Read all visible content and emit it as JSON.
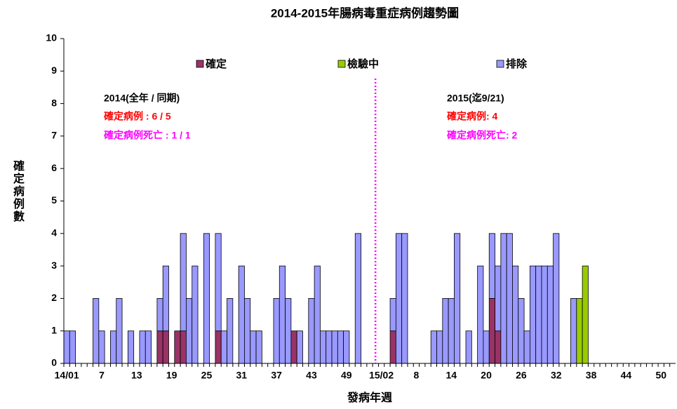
{
  "chart_data": {
    "type": "stacked-bar",
    "title": "2014-2015年腸病毒重症病例趨勢圖",
    "x_label": "發病年週",
    "y_label": "確定病例數",
    "categories": [
      "14/01",
      null,
      null,
      null,
      null,
      null,
      "7",
      null,
      null,
      null,
      null,
      null,
      "13",
      null,
      null,
      null,
      null,
      null,
      "19",
      null,
      null,
      null,
      null,
      null,
      "25",
      null,
      null,
      null,
      null,
      null,
      "31",
      null,
      null,
      null,
      null,
      null,
      "37",
      null,
      null,
      null,
      null,
      null,
      "43",
      null,
      null,
      null,
      null,
      null,
      "49",
      null,
      null,
      null,
      null,
      null,
      "15/02",
      null,
      null,
      null,
      null,
      null,
      "8",
      null,
      null,
      null,
      null,
      null,
      "14",
      null,
      null,
      null,
      null,
      null,
      "20",
      null,
      null,
      null,
      null,
      null,
      "26",
      null,
      null,
      null,
      null,
      null,
      "32",
      null,
      null,
      null,
      null,
      null,
      "38",
      null,
      null,
      null,
      null,
      null,
      "44",
      null,
      null,
      null,
      null,
      null,
      "50",
      null,
      null
    ],
    "series": [
      {
        "name": "確定",
        "color": "#993366",
        "values": [
          0,
          0,
          0,
          0,
          0,
          0,
          0,
          0,
          0,
          0,
          0,
          0,
          0,
          0,
          0,
          0,
          1,
          1,
          0,
          1,
          1,
          0,
          0,
          0,
          0,
          0,
          1,
          0,
          0,
          0,
          0,
          0,
          0,
          0,
          0,
          0,
          0,
          0,
          0,
          1,
          0,
          0,
          0,
          0,
          0,
          0,
          0,
          0,
          0,
          0,
          0,
          0,
          0,
          0,
          0,
          0,
          1,
          0,
          0,
          0,
          0,
          0,
          0,
          0,
          0,
          0,
          0,
          0,
          0,
          0,
          0,
          0,
          0,
          2,
          1,
          0,
          0,
          0,
          0,
          0,
          0,
          0,
          0,
          0,
          0,
          0,
          0,
          0,
          0,
          0,
          0,
          0,
          0,
          0,
          0,
          0,
          0,
          0,
          0,
          0,
          0,
          0,
          0,
          0,
          0
        ]
      },
      {
        "name": "檢驗中",
        "color": "#99cc00",
        "values": [
          0,
          0,
          0,
          0,
          0,
          0,
          0,
          0,
          0,
          0,
          0,
          0,
          0,
          0,
          0,
          0,
          0,
          0,
          0,
          0,
          0,
          0,
          0,
          0,
          0,
          0,
          0,
          0,
          0,
          0,
          0,
          0,
          0,
          0,
          0,
          0,
          0,
          0,
          0,
          0,
          0,
          0,
          0,
          0,
          0,
          0,
          0,
          0,
          0,
          0,
          0,
          0,
          0,
          0,
          0,
          0,
          0,
          0,
          0,
          0,
          0,
          0,
          0,
          0,
          0,
          0,
          0,
          0,
          0,
          0,
          0,
          0,
          0,
          0,
          0,
          0,
          0,
          0,
          0,
          0,
          0,
          0,
          0,
          0,
          0,
          0,
          0,
          0,
          2,
          3,
          0,
          0,
          0,
          0,
          0,
          0,
          0,
          0,
          0,
          0,
          0,
          0,
          0,
          0,
          0
        ]
      },
      {
        "name": "排除",
        "color": "#9999ff",
        "values": [
          1,
          1,
          0,
          0,
          0,
          2,
          1,
          0,
          1,
          2,
          0,
          1,
          0,
          1,
          1,
          0,
          1,
          2,
          0,
          0,
          3,
          2,
          3,
          0,
          4,
          0,
          3,
          1,
          2,
          0,
          3,
          2,
          1,
          1,
          0,
          0,
          2,
          3,
          2,
          0,
          1,
          0,
          2,
          3,
          1,
          1,
          1,
          1,
          1,
          0,
          4,
          0,
          0,
          0,
          0,
          0,
          1,
          4,
          4,
          0,
          0,
          0,
          0,
          1,
          1,
          2,
          2,
          4,
          0,
          1,
          0,
          3,
          1,
          2,
          2,
          4,
          4,
          3,
          2,
          1,
          3,
          3,
          3,
          3,
          4,
          0,
          0,
          2,
          0,
          0,
          0,
          0,
          0,
          0,
          0,
          0,
          0,
          0,
          0,
          0,
          0,
          0,
          0,
          0,
          0
        ]
      }
    ],
    "ylim": [
      0,
      10
    ],
    "yticks": [
      0,
      1,
      2,
      3,
      4,
      5,
      6,
      7,
      8,
      9,
      10
    ],
    "annotations": [
      "2014(全年 / 同期)",
      "確定病例 : 6 / 5",
      "確定病例死亡 : 1 / 1",
      "2015(迄9/21)",
      "確定病例: 4",
      "確定病例死亡: 2"
    ]
  }
}
